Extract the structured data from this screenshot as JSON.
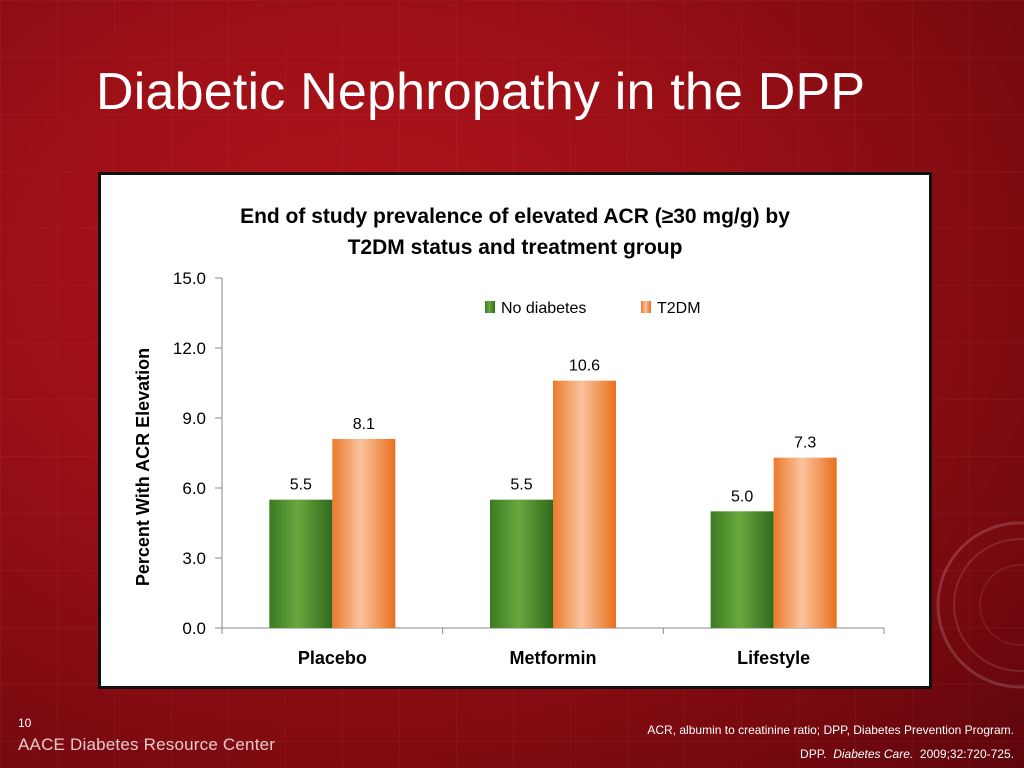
{
  "slide": {
    "title": "Diabetic Nephropathy in the DPP",
    "number": "10",
    "brand": "AACE Diabetes Resource Center",
    "footnote_line1": "ACR, albumin to creatinine ratio; DPP, Diabetes Prevention Program.",
    "footnote_ref_prefix": "DPP.",
    "footnote_journal": "Diabetes Care.",
    "footnote_citation": "2009;32:720-725.",
    "colors": {
      "background": "#9a0f16",
      "title_text": "#ffffff"
    },
    "seal_icon": "aace-seal-watermark"
  },
  "chart_data": {
    "type": "bar",
    "title_line1": "End of study prevalence of elevated ACR (≥30 mg/g) by",
    "title_line2": "T2DM status and treatment group",
    "ylabel": "Percent With ACR Elevation",
    "xlabel": "",
    "ylim": [
      0,
      15
    ],
    "yticks": [
      "0.0",
      "3.0",
      "6.0",
      "9.0",
      "12.0",
      "15.0"
    ],
    "ytick_values": [
      0,
      3,
      6,
      9,
      12,
      15
    ],
    "categories": [
      "Placebo",
      "Metformin",
      "Lifestyle"
    ],
    "series": [
      {
        "name": "No diabetes",
        "values": [
          5.5,
          5.5,
          5.0
        ],
        "labels": [
          "5.5",
          "5.5",
          "5.0"
        ],
        "color": "#4c8a2e"
      },
      {
        "name": "T2DM",
        "values": [
          8.1,
          10.6,
          7.3
        ],
        "labels": [
          "8.1",
          "10.6",
          "7.3"
        ],
        "color": "#ee7d30"
      }
    ],
    "legend_position": "top-right",
    "grid": false
  }
}
